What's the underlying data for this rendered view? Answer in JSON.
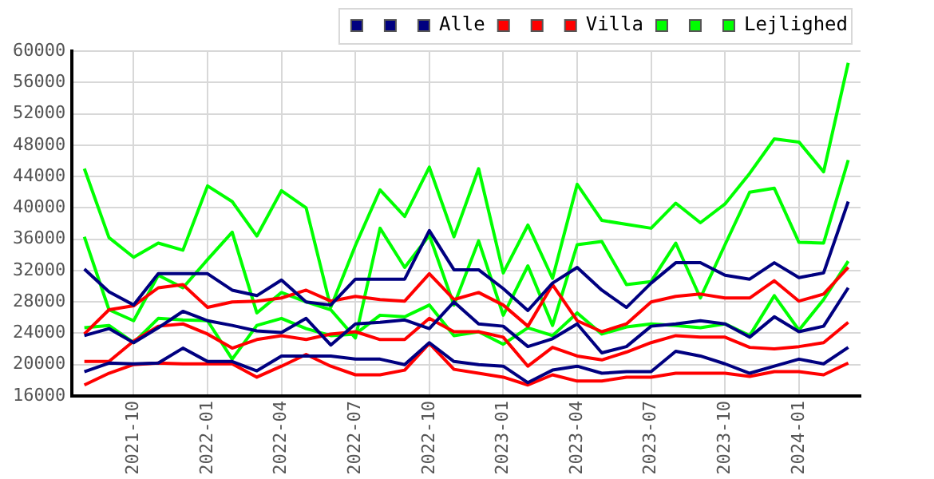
{
  "chart_data": {
    "type": "line",
    "x": [
      "2021-08",
      "2021-09",
      "2021-10",
      "2021-11",
      "2021-12",
      "2022-01",
      "2022-02",
      "2022-03",
      "2022-04",
      "2022-05",
      "2022-06",
      "2022-07",
      "2022-08",
      "2022-09",
      "2022-10",
      "2022-11",
      "2022-12",
      "2023-01",
      "2023-02",
      "2023-03",
      "2023-04",
      "2023-05",
      "2023-06",
      "2023-07",
      "2023-08",
      "2023-09",
      "2023-10",
      "2023-11",
      "2023-12",
      "2024-01",
      "2024-02",
      "2024-03"
    ],
    "series": [
      {
        "color": "#000080",
        "values": [
          19100,
          20200,
          20100,
          20200,
          22100,
          20400,
          20400,
          19200,
          21100,
          21100,
          21100,
          20700,
          20700,
          20000,
          22800,
          20400,
          20000,
          19800,
          17700,
          19300,
          19800,
          18900,
          19100,
          19100,
          21700,
          21100,
          20100,
          18900,
          19800,
          20700,
          20100,
          22200
        ]
      },
      {
        "color": "#000080",
        "values": [
          23700,
          24600,
          22800,
          24700,
          26800,
          25600,
          25000,
          24300,
          24100,
          25900,
          22500,
          25200,
          25400,
          25700,
          24600,
          28000,
          25200,
          24900,
          22300,
          23300,
          25200,
          21500,
          22300,
          24900,
          25200,
          25600,
          25200,
          23500,
          26100,
          24200,
          24900,
          29800
        ]
      },
      {
        "name": "Alle",
        "color": "#000080",
        "values": [
          32200,
          29300,
          27600,
          31600,
          31600,
          31600,
          29500,
          28800,
          30800,
          28000,
          27600,
          30900,
          30900,
          30900,
          37100,
          32100,
          32100,
          29700,
          26900,
          30400,
          32400,
          29500,
          27300,
          30400,
          33000,
          33000,
          31400,
          30900,
          33000,
          31100,
          31700,
          40800
        ]
      },
      {
        "color": "#ff0000",
        "values": [
          17400,
          18900,
          20000,
          20200,
          20100,
          20100,
          20100,
          18400,
          19800,
          21300,
          19800,
          18700,
          18700,
          19300,
          22700,
          19400,
          18900,
          18400,
          17400,
          18700,
          17900,
          17900,
          18400,
          18400,
          18900,
          18900,
          18900,
          18500,
          19100,
          19100,
          18700,
          20200
        ]
      },
      {
        "color": "#ff0000",
        "values": [
          20400,
          20400,
          23000,
          24900,
          25200,
          23900,
          22100,
          23200,
          23700,
          23200,
          23900,
          24200,
          23200,
          23200,
          25900,
          24200,
          24200,
          23500,
          19800,
          22200,
          21100,
          20600,
          21600,
          22800,
          23700,
          23500,
          23500,
          22200,
          22000,
          22300,
          22800,
          25400
        ]
      },
      {
        "name": "Villa",
        "color": "#ff0000",
        "values": [
          23900,
          27000,
          27500,
          29800,
          30200,
          27300,
          28000,
          28100,
          28500,
          29500,
          28100,
          28700,
          28300,
          28100,
          31600,
          28300,
          29200,
          27600,
          24900,
          30200,
          25600,
          24200,
          25200,
          28000,
          28700,
          29000,
          28500,
          28500,
          30700,
          28100,
          29000,
          32400
        ]
      },
      {
        "color": "#00ff00",
        "values": [
          24700,
          25000,
          22800,
          25900,
          25700,
          25600,
          20700,
          25000,
          25900,
          24600,
          23700,
          23900,
          26300,
          26100,
          27600,
          23700,
          24200,
          22600,
          24700,
          23700,
          26600,
          23900,
          24800,
          25200,
          25000,
          24700,
          25200,
          23700,
          28800,
          24400,
          28300,
          33200
        ]
      },
      {
        "color": "#00ff00",
        "values": [
          36300,
          27000,
          25600,
          31400,
          29800,
          33400,
          36900,
          26600,
          29200,
          28000,
          27000,
          23400,
          37400,
          32400,
          36500,
          27600,
          35800,
          26300,
          32600,
          25000,
          35300,
          35700,
          30200,
          30600,
          35500,
          28500,
          35300,
          42000,
          42500,
          35600,
          35500,
          46100
        ]
      },
      {
        "name": "Lejlighed",
        "color": "#00ff00",
        "values": [
          45000,
          36200,
          33700,
          35500,
          34600,
          42800,
          40800,
          36400,
          42200,
          40000,
          27300,
          35200,
          42300,
          38900,
          45200,
          36300,
          45000,
          31700,
          37800,
          31000,
          43000,
          38400,
          37900,
          37400,
          40600,
          38100,
          40500,
          44400,
          48800,
          48400,
          44600,
          58500
        ]
      }
    ],
    "xlim": [
      "2021-07-16",
      "2024-03-16"
    ],
    "xticks": [
      "2021-10",
      "2022-01",
      "2022-04",
      "2022-07",
      "2022-10",
      "2023-01",
      "2023-04",
      "2023-07",
      "2023-10",
      "2024-01"
    ],
    "ylim": [
      16000,
      60000
    ],
    "yticks": [
      16000,
      20000,
      24000,
      28000,
      32000,
      36000,
      40000,
      44000,
      48000,
      52000,
      56000,
      60000
    ],
    "grid": true,
    "legend": "top right",
    "marker": "none",
    "line_style": "solid"
  }
}
